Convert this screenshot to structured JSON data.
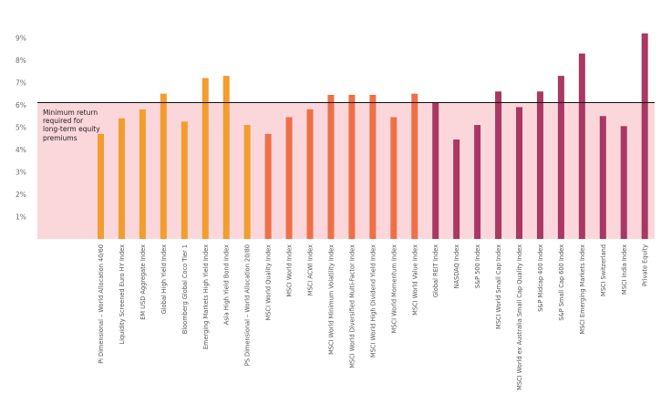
{
  "chart_data": {
    "type": "bar",
    "title": "",
    "xlabel": "",
    "ylabel": "",
    "ylim": [
      0,
      9.3
    ],
    "yticks": [
      "1%",
      "2%",
      "3%",
      "4%",
      "5%",
      "6%",
      "7%",
      "8%",
      "9%"
    ],
    "ytick_values": [
      1,
      2,
      3,
      4,
      5,
      6,
      7,
      8,
      9
    ],
    "threshold": {
      "value": 6.1,
      "shaded_region_color": "#fbd7dc",
      "line_color": "#111111",
      "label_lines": [
        "Minimum return",
        "required for",
        "long-term equity",
        "premiums"
      ]
    },
    "group_colors": {
      "orange": "#f29d2e",
      "coral": "#ef7046",
      "crimson": "#a93862"
    },
    "categories": [
      "Pi Dimensional – World Allocation 40/60",
      "Liquidity Screened Euro HY Index",
      "EM USD Aggregate Index",
      "Global High Yield Index",
      "Bloomberg Global Coco Tier 1",
      "Emerging Markets High Yield Index",
      "Asia High Yield Bond Index",
      "PS Dimensional – World Allocation 20/80",
      "MSCI World Quality Index",
      "MSCI World Index",
      "MSCI ACWI Index",
      "MSCI World Minimum Volatility Index",
      "MSCI World Diversified Multi-Factor Index",
      "MSCI World High Dividend Yield Index",
      "MSCI World Momentum Index",
      "MSCI World Value Index",
      "Global REIT Index",
      "NASDAQ Index",
      "S&P 500 Index",
      "MSCI World Small Cap Index",
      "MSCI World ex Australia Small Cap Quality Index",
      "S&P Midcap 400 Index",
      "S&P Small Cap 600 Index",
      "MSCI Emerging Markets Index",
      "MSCI Switzerland",
      "MSCI India Index",
      "Private Equity"
    ],
    "values": [
      4.7,
      5.4,
      5.8,
      6.5,
      5.25,
      7.2,
      7.3,
      5.1,
      4.7,
      5.45,
      5.8,
      6.45,
      6.45,
      6.45,
      5.45,
      6.5,
      6.1,
      4.45,
      5.1,
      6.6,
      5.9,
      6.6,
      7.3,
      8.3,
      5.5,
      5.05,
      9.2
    ],
    "bar_groups": [
      "orange",
      "orange",
      "orange",
      "orange",
      "orange",
      "orange",
      "orange",
      "orange",
      "coral",
      "coral",
      "coral",
      "coral",
      "coral",
      "coral",
      "coral",
      "coral",
      "crimson",
      "crimson",
      "crimson",
      "crimson",
      "crimson",
      "crimson",
      "crimson",
      "crimson",
      "crimson",
      "crimson",
      "crimson"
    ]
  }
}
